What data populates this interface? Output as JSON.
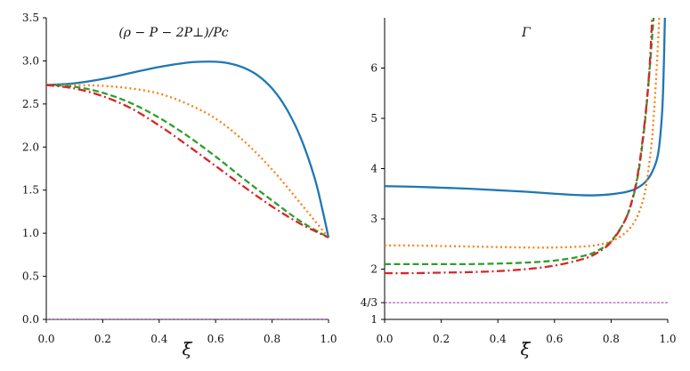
{
  "chart_data": [
    {
      "type": "line",
      "title": "(ρ − P − 2P⊥)/Pc",
      "xlabel": "ξ̄",
      "ylabel": "",
      "xlim": [
        0.0,
        1.0
      ],
      "ylim": [
        0.0,
        3.5
      ],
      "xticks": [
        "0.0",
        "0.2",
        "0.4",
        "0.6",
        "0.8",
        "1.0"
      ],
      "yticks": [
        "0.0",
        "0.5",
        "1.0",
        "1.5",
        "2.0",
        "2.5",
        "3.0",
        "3.5"
      ],
      "grid": false,
      "series": [
        {
          "color": "#1f77b4",
          "style": "solid",
          "x": [
            0.0,
            0.1,
            0.2,
            0.3,
            0.4,
            0.5,
            0.55,
            0.6,
            0.65,
            0.7,
            0.75,
            0.8,
            0.85,
            0.9,
            0.95,
            0.98,
            1.0
          ],
          "y": [
            2.72,
            2.74,
            2.79,
            2.86,
            2.93,
            2.98,
            2.99,
            2.99,
            2.97,
            2.92,
            2.83,
            2.68,
            2.45,
            2.12,
            1.65,
            1.25,
            0.95
          ]
        },
        {
          "color": "#ff7f0e",
          "style": "dotted",
          "x": [
            0.0,
            0.1,
            0.2,
            0.3,
            0.4,
            0.5,
            0.6,
            0.7,
            0.8,
            0.9,
            0.95,
            1.0
          ],
          "y": [
            2.72,
            2.72,
            2.71,
            2.68,
            2.62,
            2.5,
            2.33,
            2.07,
            1.74,
            1.35,
            1.15,
            0.95
          ]
        },
        {
          "color": "#2ca02c",
          "style": "dashed",
          "x": [
            0.0,
            0.1,
            0.2,
            0.3,
            0.4,
            0.5,
            0.6,
            0.7,
            0.8,
            0.9,
            1.0
          ],
          "y": [
            2.72,
            2.7,
            2.63,
            2.51,
            2.34,
            2.13,
            1.89,
            1.63,
            1.38,
            1.14,
            0.95
          ]
        },
        {
          "color": "#d62728",
          "style": "dashdot",
          "x": [
            0.0,
            0.1,
            0.2,
            0.3,
            0.4,
            0.5,
            0.6,
            0.7,
            0.8,
            0.9,
            1.0
          ],
          "y": [
            2.72,
            2.68,
            2.59,
            2.45,
            2.25,
            2.02,
            1.78,
            1.54,
            1.31,
            1.11,
            0.95
          ]
        }
      ],
      "hline": {
        "y": 0.0,
        "color": "#9b1fa8",
        "style": "dashed"
      }
    },
    {
      "type": "line",
      "title": "Γ",
      "xlabel": "ξ̄",
      "ylabel": "",
      "xlim": [
        0.0,
        1.0
      ],
      "ylim": [
        1.0,
        7.0
      ],
      "xticks": [
        "0.0",
        "0.2",
        "0.4",
        "0.6",
        "0.8",
        "1.0"
      ],
      "ytick_values": [
        1,
        1.3333,
        2,
        3,
        4,
        5,
        6
      ],
      "yticks": [
        "1",
        "4/3",
        "2",
        "3",
        "4",
        "5",
        "6"
      ],
      "grid": false,
      "series": [
        {
          "color": "#1f77b4",
          "style": "solid",
          "x": [
            0.0,
            0.1,
            0.2,
            0.3,
            0.4,
            0.5,
            0.6,
            0.7,
            0.75,
            0.8,
            0.85,
            0.88,
            0.9,
            0.92,
            0.94,
            0.96,
            0.97,
            0.98,
            0.985,
            0.99
          ],
          "y": [
            3.65,
            3.64,
            3.62,
            3.6,
            3.57,
            3.54,
            3.5,
            3.47,
            3.47,
            3.49,
            3.53,
            3.58,
            3.64,
            3.73,
            3.88,
            4.15,
            4.45,
            5.1,
            5.8,
            7.0
          ]
        },
        {
          "color": "#ff7f0e",
          "style": "dotted",
          "x": [
            0.0,
            0.1,
            0.2,
            0.3,
            0.4,
            0.5,
            0.6,
            0.7,
            0.75,
            0.8,
            0.85,
            0.88,
            0.9,
            0.92,
            0.94,
            0.95,
            0.96,
            0.97
          ],
          "y": [
            2.47,
            2.47,
            2.46,
            2.45,
            2.44,
            2.43,
            2.43,
            2.45,
            2.48,
            2.55,
            2.72,
            2.92,
            3.15,
            3.55,
            4.35,
            5.0,
            5.9,
            7.0
          ]
        },
        {
          "color": "#2ca02c",
          "style": "dashed",
          "x": [
            0.0,
            0.1,
            0.2,
            0.3,
            0.4,
            0.5,
            0.6,
            0.7,
            0.75,
            0.8,
            0.85,
            0.88,
            0.9,
            0.92,
            0.935,
            0.95
          ],
          "y": [
            2.1,
            2.1,
            2.1,
            2.1,
            2.11,
            2.13,
            2.17,
            2.26,
            2.36,
            2.56,
            2.98,
            3.48,
            4.05,
            4.95,
            5.9,
            7.0
          ]
        },
        {
          "color": "#d62728",
          "style": "dashdot",
          "x": [
            0.0,
            0.1,
            0.2,
            0.3,
            0.4,
            0.5,
            0.6,
            0.7,
            0.75,
            0.8,
            0.85,
            0.88,
            0.9,
            0.92,
            0.935,
            0.945
          ],
          "y": [
            1.92,
            1.92,
            1.93,
            1.94,
            1.96,
            2.0,
            2.07,
            2.2,
            2.32,
            2.54,
            2.98,
            3.5,
            4.1,
            5.0,
            5.95,
            7.0
          ]
        }
      ],
      "hline": {
        "y": 1.3333,
        "color": "#9b1fa8",
        "style": "dashed"
      }
    }
  ]
}
